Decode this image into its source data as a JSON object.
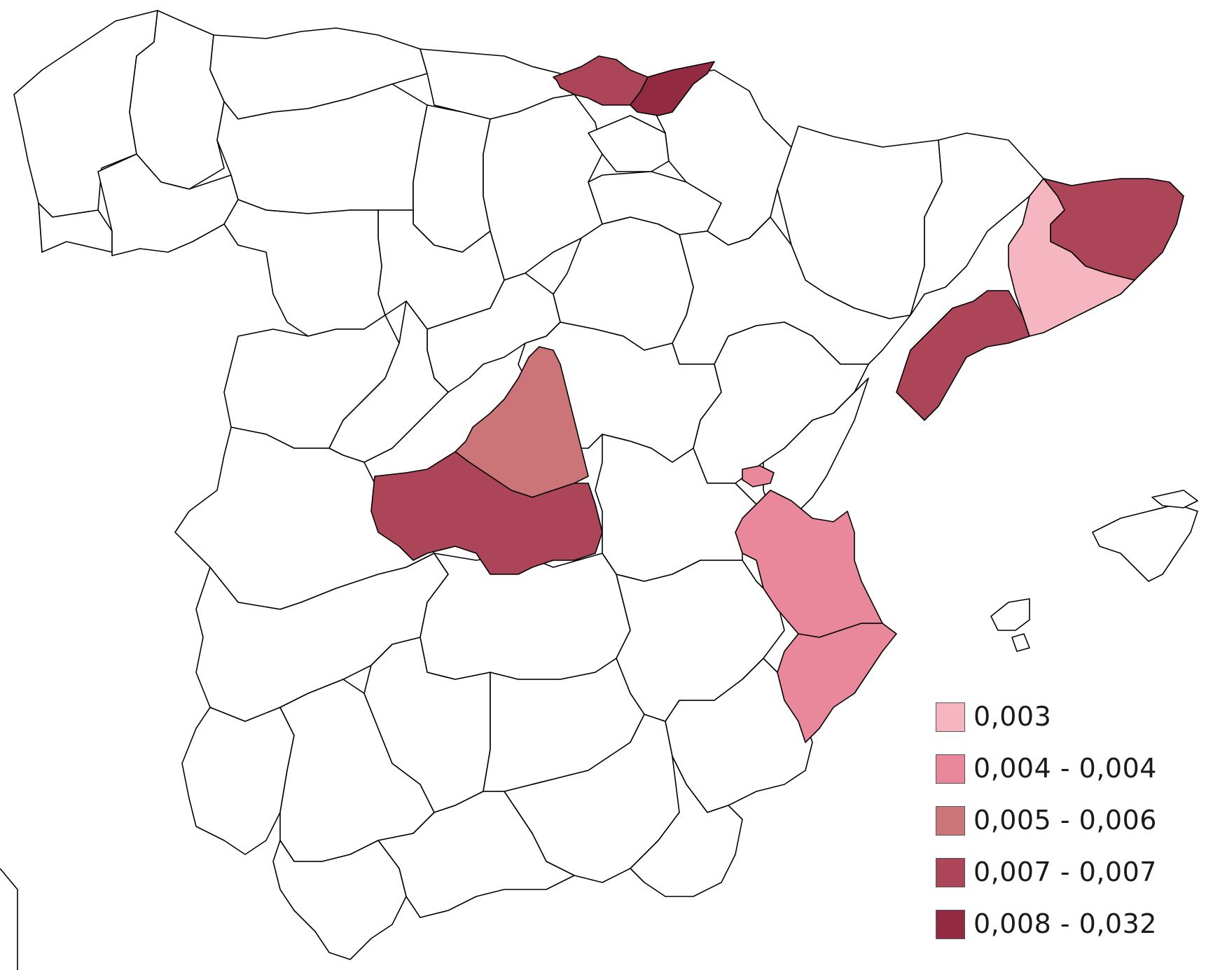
{
  "map": {
    "base_fill": "#ffffff",
    "border_color": "#000000",
    "regions": [
      {
        "name": "Bizkaia",
        "value_class": 3,
        "color": "#ad4558"
      },
      {
        "name": "Gipuzkoa",
        "value_class": 4,
        "color": "#922b42"
      },
      {
        "name": "Girona",
        "value_class": 3,
        "color": "#ad4558"
      },
      {
        "name": "Barcelona",
        "value_class": 0,
        "color": "#f5b6c1"
      },
      {
        "name": "Tarragona",
        "value_class": 3,
        "color": "#ad4558"
      },
      {
        "name": "Madrid",
        "value_class": 2,
        "color": "#cc7579"
      },
      {
        "name": "Toledo",
        "value_class": 3,
        "color": "#ad4558"
      },
      {
        "name": "Valencia",
        "value_class": 1,
        "color": "#e8889a"
      },
      {
        "name": "Alicante",
        "value_class": 1,
        "color": "#e8889a"
      },
      {
        "name": "Rincón de Ademuz",
        "value_class": 1,
        "color": "#e8889a"
      }
    ]
  },
  "legend": {
    "items": [
      {
        "label": "0,003",
        "color": "#f5b6c1"
      },
      {
        "label": "0,004 - 0,004",
        "color": "#e8889a"
      },
      {
        "label": "0,005 - 0,006",
        "color": "#cc7579"
      },
      {
        "label": "0,007 - 0,007",
        "color": "#ad4558"
      },
      {
        "label": "0,008 - 0,032",
        "color": "#922b42"
      }
    ]
  }
}
